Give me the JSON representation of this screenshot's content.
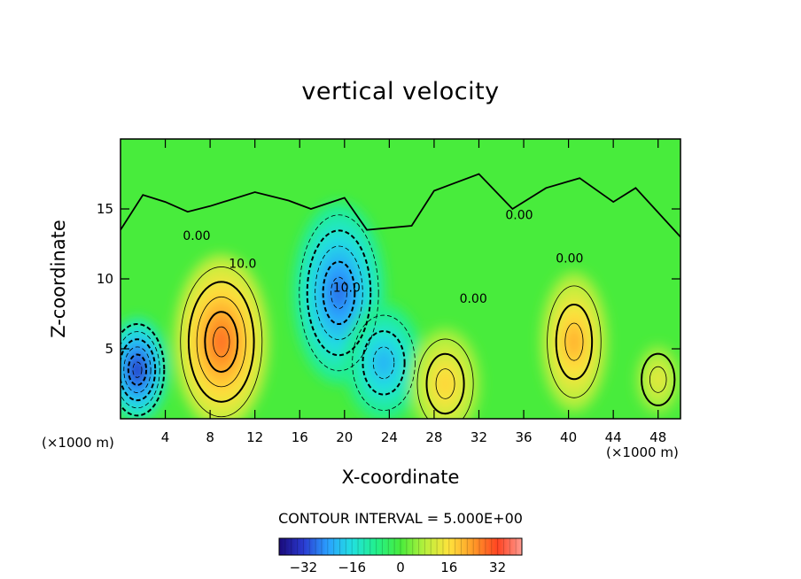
{
  "chart_data": {
    "type": "heatmap",
    "title": "vertical velocity",
    "xlabel": "X-coordinate",
    "ylabel": "Z-coordinate",
    "x_unit_label": "(×1000 m)",
    "contour_interval_label": "CONTOUR INTERVAL = 5.000E+00",
    "xlim": [
      0,
      50
    ],
    "ylim": [
      0,
      20
    ],
    "x_ticks": [
      4,
      8,
      12,
      16,
      20,
      24,
      28,
      32,
      36,
      40,
      44,
      48
    ],
    "x_tick_labels": [
      "4",
      "8",
      "12",
      "16",
      "20",
      "24",
      "28",
      "32",
      "36",
      "40",
      "44",
      "48"
    ],
    "y_ticks": [
      5,
      10,
      15
    ],
    "y_tick_labels": [
      "5",
      "10",
      "15"
    ],
    "colorbar": {
      "range": [
        -40,
        40
      ],
      "ticks": [
        -32,
        -16,
        0,
        16,
        32
      ],
      "tick_labels": [
        "−32",
        "−16",
        "0",
        "16",
        "32"
      ],
      "colors": [
        "#1a0a7a",
        "#2a3ad0",
        "#2aa0ff",
        "#22e0e0",
        "#22f08a",
        "#48ec3c",
        "#b8f03c",
        "#ffe23c",
        "#ff9a28",
        "#ff4422",
        "#ff9a90"
      ]
    },
    "contour_labels": [
      {
        "text": "0.00",
        "x": 6.8,
        "y": 13.1
      },
      {
        "text": "10.0",
        "x": 10.9,
        "y": 11.1
      },
      {
        "text": "0.00",
        "x": 35.6,
        "y": 14.6
      },
      {
        "text": "0.00",
        "x": 31.5,
        "y": 8.6
      },
      {
        "text": "0.00",
        "x": 40.1,
        "y": 11.5
      },
      {
        "text": "10.0",
        "x": 20.2,
        "y": 9.4
      }
    ],
    "field_extrema": [
      {
        "sign": "negative",
        "x": 1.5,
        "z": 3.5,
        "value": -34
      },
      {
        "sign": "positive",
        "x": 9.0,
        "z": 5.5,
        "value": 28
      },
      {
        "sign": "negative",
        "x": 19.5,
        "z": 9.0,
        "value": -28
      },
      {
        "sign": "negative",
        "x": 23.5,
        "z": 4.0,
        "value": -22
      },
      {
        "sign": "positive",
        "x": 29.0,
        "z": 2.5,
        "value": 18
      },
      {
        "sign": "positive",
        "x": 40.5,
        "z": 5.5,
        "value": 22
      },
      {
        "sign": "positive",
        "x": 48.0,
        "z": 2.8,
        "value": 14
      }
    ]
  }
}
